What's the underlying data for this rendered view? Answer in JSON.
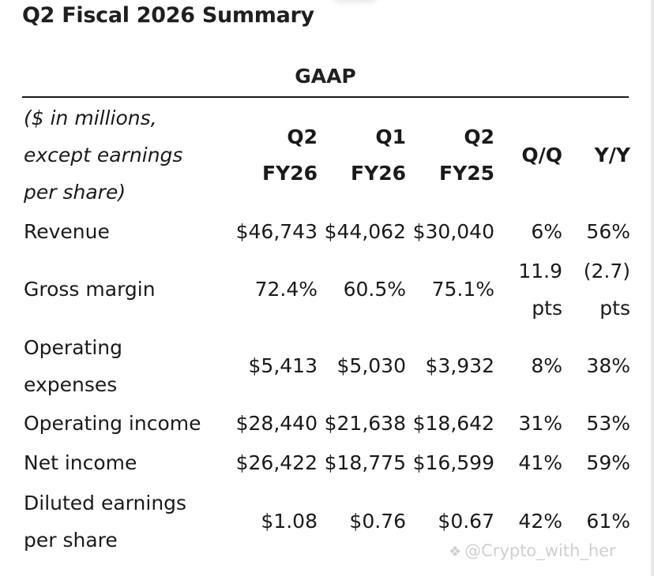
{
  "title": "Q2 Fiscal 2026 Summary",
  "section": "GAAP",
  "header": {
    "note_lines": [
      "($ in millions,",
      "except earnings",
      "per share)"
    ],
    "col1": [
      "Q2",
      "FY26"
    ],
    "col2": [
      "Q1",
      "FY26"
    ],
    "col3": [
      "Q2",
      "FY25"
    ],
    "col4": "Q/Q",
    "col5": "Y/Y"
  },
  "rows": [
    {
      "label": [
        "Revenue"
      ],
      "q2fy26": "$46,743",
      "q1fy26": "$44,062",
      "q2fy25": "$30,040",
      "qq": [
        "6%"
      ],
      "yy": [
        "56%"
      ]
    },
    {
      "label": [
        "Gross margin"
      ],
      "q2fy26": "72.4%",
      "q1fy26": "60.5%",
      "q2fy25": "75.1%",
      "qq": [
        "11.9",
        "pts"
      ],
      "yy": [
        "(2.7)",
        "pts"
      ]
    },
    {
      "label": [
        "Operating",
        "expenses"
      ],
      "q2fy26": "$5,413",
      "q1fy26": "$5,030",
      "q2fy25": "$3,932",
      "qq": [
        "8%"
      ],
      "yy": [
        "38%"
      ]
    },
    {
      "label": [
        "Operating income"
      ],
      "q2fy26": "$28,440",
      "q1fy26": "$21,638",
      "q2fy25": "$18,642",
      "qq": [
        "31%"
      ],
      "yy": [
        "53%"
      ]
    },
    {
      "label": [
        "Net income"
      ],
      "q2fy26": "$26,422",
      "q1fy26": "$18,775",
      "q2fy25": "$16,599",
      "qq": [
        "41%"
      ],
      "yy": [
        "59%"
      ]
    },
    {
      "label": [
        "Diluted earnings",
        "per share"
      ],
      "q2fy26": "$1.08",
      "q1fy26": "$0.76",
      "q2fy25": "$0.67",
      "qq": [
        "42%"
      ],
      "yy": [
        "61%"
      ]
    }
  ],
  "watermark": "@Crypto_with_her"
}
